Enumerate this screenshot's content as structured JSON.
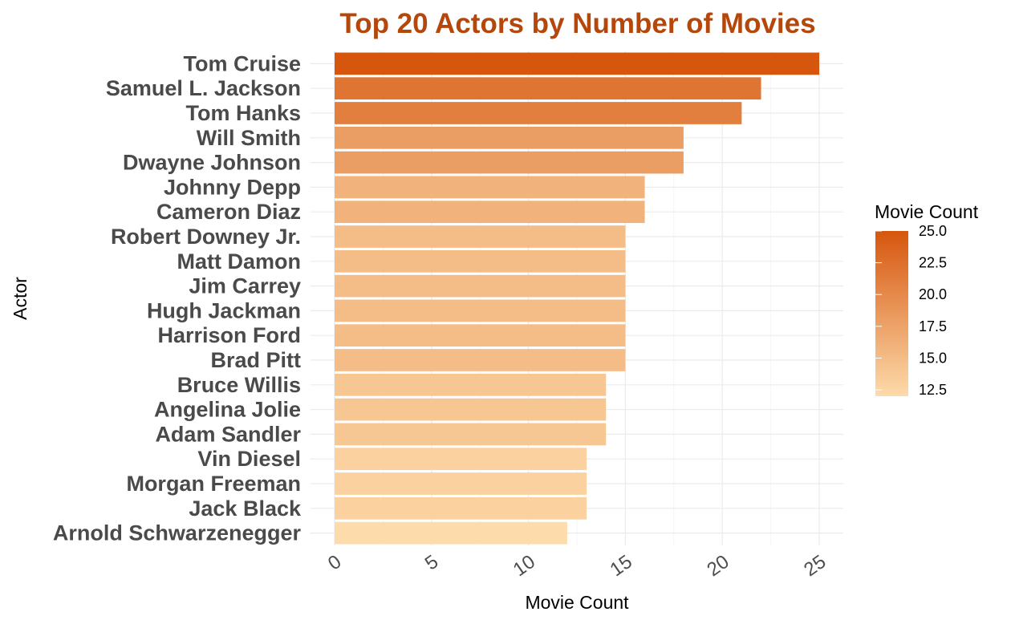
{
  "chart_data": {
    "type": "bar",
    "orientation": "horizontal",
    "title": "Top 20 Actors by Number of Movies",
    "xlabel": "Movie Count",
    "ylabel": "Actor",
    "categories": [
      "Tom Cruise",
      "Samuel L. Jackson",
      "Tom Hanks",
      "Will Smith",
      "Dwayne Johnson",
      "Johnny Depp",
      "Cameron Diaz",
      "Robert Downey Jr.",
      "Matt Damon",
      "Jim Carrey",
      "Hugh Jackman",
      "Harrison Ford",
      "Brad Pitt",
      "Bruce Willis",
      "Angelina Jolie",
      "Adam Sandler",
      "Vin Diesel",
      "Morgan Freeman",
      "Jack Black",
      "Arnold Schwarzenegger"
    ],
    "values": [
      25,
      22,
      21,
      18,
      18,
      16,
      16,
      15,
      15,
      15,
      15,
      15,
      15,
      14,
      14,
      14,
      13,
      13,
      13,
      12
    ],
    "xlim": [
      0,
      26
    ],
    "xticks": [
      "0",
      "5",
      "10",
      "15",
      "20",
      "25"
    ],
    "grid": true,
    "legend": {
      "title": "Movie Count",
      "position": "right",
      "range": [
        12,
        25
      ],
      "ticks": [
        "25.0",
        "22.5",
        "20.0",
        "17.5",
        "15.0",
        "12.5"
      ],
      "low_color": "#fddbab",
      "high_color": "#d6560e"
    },
    "title_color": "#b5470b"
  }
}
